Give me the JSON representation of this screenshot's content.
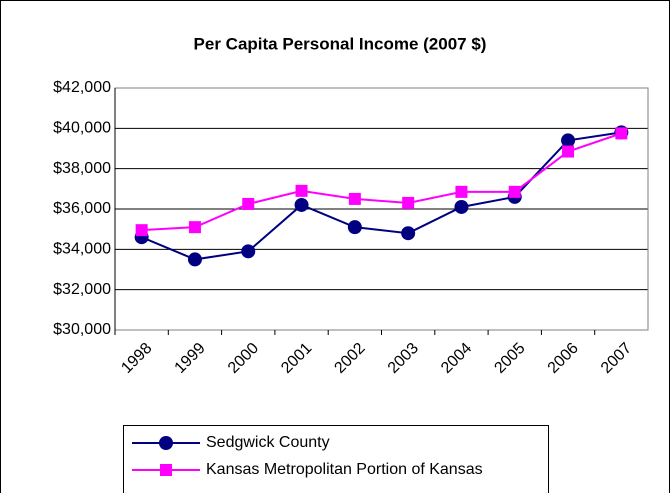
{
  "chart_data": {
    "type": "line",
    "title": "Per Capita Personal Income (2007 $)",
    "categories": [
      "1998",
      "1999",
      "2000",
      "2001",
      "2002",
      "2003",
      "2004",
      "2005",
      "2006",
      "2007"
    ],
    "series": [
      {
        "name": "Sedgwick County",
        "color": "#000080",
        "marker": "circle",
        "values": [
          34600,
          33500,
          33900,
          36200,
          35100,
          34800,
          36100,
          36600,
          39400,
          39800
        ]
      },
      {
        "name": "Kansas Metropolitan Portion of Kansas",
        "color": "#ff00ff",
        "marker": "square",
        "values": [
          34950,
          35100,
          36250,
          36900,
          36500,
          36300,
          36850,
          36850,
          38850,
          39750
        ]
      }
    ],
    "ylim": [
      30000,
      42000
    ],
    "yticks": [
      {
        "value": 30000,
        "label": "$30,000"
      },
      {
        "value": 32000,
        "label": "$32,000"
      },
      {
        "value": 34000,
        "label": "$34,000"
      },
      {
        "value": 36000,
        "label": "$36,000"
      },
      {
        "value": 38000,
        "label": "$38,000"
      },
      {
        "value": 40000,
        "label": "$40,000"
      },
      {
        "value": 42000,
        "label": "$42,000"
      }
    ],
    "grid": true,
    "legend": "bottom"
  }
}
